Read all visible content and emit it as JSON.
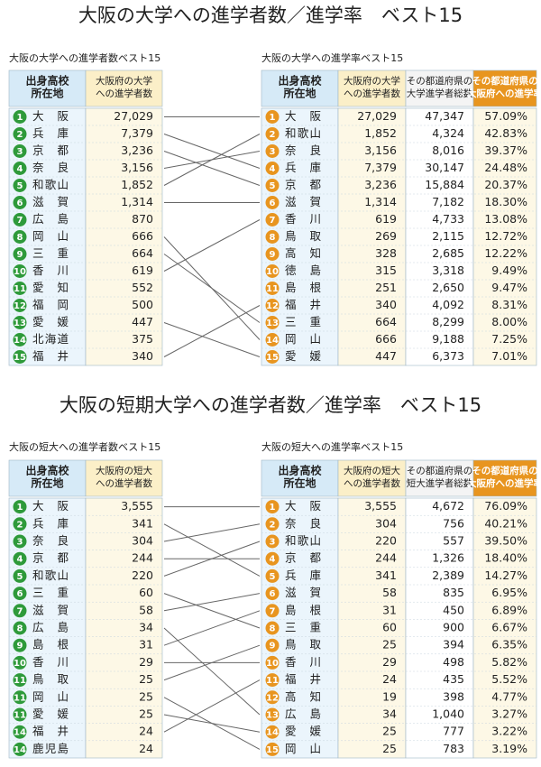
{
  "sections": [
    {
      "title": "大阪の大学への進学者数／進学率　ベスト15",
      "left": {
        "caption": "大阪の大学への進学者数ベスト15",
        "headers": [
          [
            "出身高校",
            "所在地"
          ],
          [
            "大阪府の大学",
            "への進学者数"
          ]
        ],
        "rows": [
          [
            "1",
            "大阪",
            "27,029"
          ],
          [
            "2",
            "兵庫",
            "7,379"
          ],
          [
            "3",
            "京都",
            "3,236"
          ],
          [
            "4",
            "奈良",
            "3,156"
          ],
          [
            "5",
            "和歌山",
            "1,852"
          ],
          [
            "6",
            "滋賀",
            "1,314"
          ],
          [
            "7",
            "広島",
            "870"
          ],
          [
            "8",
            "岡山",
            "666"
          ],
          [
            "9",
            "三重",
            "664"
          ],
          [
            "10",
            "香川",
            "619"
          ],
          [
            "11",
            "愛知",
            "552"
          ],
          [
            "12",
            "福岡",
            "500"
          ],
          [
            "13",
            "愛媛",
            "447"
          ],
          [
            "14",
            "北海道",
            "375"
          ],
          [
            "15",
            "福井",
            "340"
          ]
        ]
      },
      "right": {
        "caption": "大阪の大学への進学率ベスト15",
        "headers": [
          [
            "出身高校",
            "所在地"
          ],
          [
            "大阪府の大学",
            "への進学者数"
          ],
          [
            "その都道府県の",
            "大学進学者総数"
          ],
          [
            "その都道府県の",
            "大阪府への進学率"
          ]
        ],
        "rows": [
          [
            "1",
            "大阪",
            "27,029",
            "47,347",
            "57.09%"
          ],
          [
            "2",
            "和歌山",
            "1,852",
            "4,324",
            "42.83%"
          ],
          [
            "3",
            "奈良",
            "3,156",
            "8,016",
            "39.37%"
          ],
          [
            "4",
            "兵庫",
            "7,379",
            "30,147",
            "24.48%"
          ],
          [
            "5",
            "京都",
            "3,236",
            "15,884",
            "20.37%"
          ],
          [
            "6",
            "滋賀",
            "1,314",
            "7,182",
            "18.30%"
          ],
          [
            "7",
            "香川",
            "619",
            "4,733",
            "13.08%"
          ],
          [
            "8",
            "鳥取",
            "269",
            "2,115",
            "12.72%"
          ],
          [
            "9",
            "高知",
            "328",
            "2,685",
            "12.22%"
          ],
          [
            "10",
            "徳島",
            "315",
            "3,318",
            "9.49%"
          ],
          [
            "11",
            "島根",
            "251",
            "2,650",
            "9.47%"
          ],
          [
            "12",
            "福井",
            "340",
            "4,092",
            "8.31%"
          ],
          [
            "13",
            "三重",
            "664",
            "8,299",
            "8.00%"
          ],
          [
            "14",
            "岡山",
            "666",
            "9,188",
            "7.25%"
          ],
          [
            "15",
            "愛媛",
            "447",
            "6,373",
            "7.01%"
          ]
        ]
      }
    },
    {
      "title": "大阪の短期大学への進学者数／進学率　ベスト15",
      "left": {
        "caption": "大阪の短大への進学者数ベスト15",
        "headers": [
          [
            "出身高校",
            "所在地"
          ],
          [
            "大阪府の短大",
            "への進学者数"
          ]
        ],
        "rows": [
          [
            "1",
            "大阪",
            "3,555"
          ],
          [
            "2",
            "兵庫",
            "341"
          ],
          [
            "3",
            "奈良",
            "304"
          ],
          [
            "4",
            "京都",
            "244"
          ],
          [
            "5",
            "和歌山",
            "220"
          ],
          [
            "6",
            "三重",
            "60"
          ],
          [
            "7",
            "滋賀",
            "58"
          ],
          [
            "8",
            "広島",
            "34"
          ],
          [
            "9",
            "島根",
            "31"
          ],
          [
            "10",
            "香川",
            "29"
          ],
          [
            "11",
            "鳥取",
            "25"
          ],
          [
            "11",
            "岡山",
            "25"
          ],
          [
            "11",
            "愛媛",
            "25"
          ],
          [
            "14",
            "福井",
            "24"
          ],
          [
            "14",
            "鹿児島",
            "24"
          ]
        ]
      },
      "right": {
        "caption": "大阪の短大への進学率ベスト15",
        "headers": [
          [
            "出身高校",
            "所在地"
          ],
          [
            "大阪府の短大",
            "への進学者数"
          ],
          [
            "その都道府県の",
            "短大進学者総数"
          ],
          [
            "その都道府県の",
            "大阪府への進学率"
          ]
        ],
        "rows": [
          [
            "1",
            "大阪",
            "3,555",
            "4,672",
            "76.09%"
          ],
          [
            "2",
            "奈良",
            "304",
            "756",
            "40.21%"
          ],
          [
            "3",
            "和歌山",
            "220",
            "557",
            "39.50%"
          ],
          [
            "4",
            "京都",
            "244",
            "1,326",
            "18.40%"
          ],
          [
            "5",
            "兵庫",
            "341",
            "2,389",
            "14.27%"
          ],
          [
            "6",
            "滋賀",
            "58",
            "835",
            "6.95%"
          ],
          [
            "7",
            "島根",
            "31",
            "450",
            "6.89%"
          ],
          [
            "8",
            "三重",
            "60",
            "900",
            "6.67%"
          ],
          [
            "9",
            "鳥取",
            "25",
            "394",
            "6.35%"
          ],
          [
            "10",
            "香川",
            "29",
            "498",
            "5.82%"
          ],
          [
            "11",
            "福井",
            "24",
            "435",
            "5.52%"
          ],
          [
            "12",
            "高知",
            "19",
            "398",
            "4.77%"
          ],
          [
            "13",
            "広島",
            "34",
            "1,040",
            "3.27%"
          ],
          [
            "14",
            "愛媛",
            "25",
            "777",
            "3.22%"
          ],
          [
            "15",
            "岡山",
            "25",
            "783",
            "3.19%"
          ]
        ]
      }
    }
  ]
}
